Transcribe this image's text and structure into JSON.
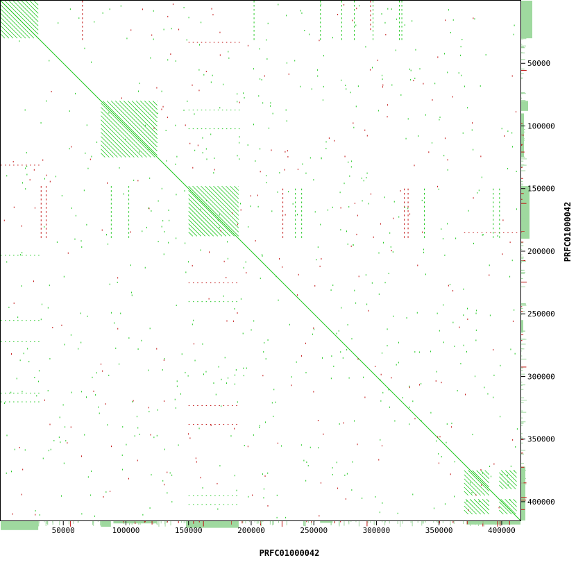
{
  "chart_data": {
    "type": "scatter",
    "title": "",
    "xlabel": "PRFC01000042",
    "ylabel": "PRFC01000042",
    "xlim": [
      0,
      415000
    ],
    "ylim": [
      0,
      415000
    ],
    "y_inverted": true,
    "grid": false,
    "legend": "none",
    "x_ticks": [
      50000,
      100000,
      150000,
      200000,
      250000,
      300000,
      350000,
      400000
    ],
    "x_tick_labels": [
      "50000",
      "100000",
      "150000",
      "200000",
      "250000",
      "300000",
      "350000",
      "400000"
    ],
    "y_ticks": [
      50000,
      100000,
      150000,
      200000,
      250000,
      300000,
      350000,
      400000
    ],
    "y_tick_labels": [
      "50000",
      "100000",
      "150000",
      "200000",
      "250000",
      "300000",
      "350000",
      "400000"
    ],
    "colors": {
      "forward": "#1fc81f",
      "reverse": "#c01010",
      "coverage": "#9fd99f",
      "frame": "#000000"
    },
    "series": [
      {
        "name": "",
        "kind": "forward-diagonal",
        "values": [
          [
            0,
            0
          ],
          [
            415000,
            415000
          ]
        ]
      },
      {
        "name": "",
        "kind": "forward-blocks",
        "blocks": [
          {
            "x": [
              0,
              30000
            ],
            "y": [
              0,
              30000
            ]
          },
          {
            "x": [
              150000,
              190000
            ],
            "y": [
              148000,
              188000
            ]
          },
          {
            "x": [
              80000,
              125000
            ],
            "y": [
              80000,
              125000
            ]
          },
          {
            "x": [
              370000,
              390000
            ],
            "y": [
              375000,
              395000
            ]
          },
          {
            "x": [
              398000,
              412000
            ],
            "y": [
              375000,
              390000
            ]
          },
          {
            "x": [
              370000,
              390000
            ],
            "y": [
              398000,
              410000
            ]
          },
          {
            "x": [
              398000,
              412000
            ],
            "y": [
              398000,
              410000
            ]
          }
        ]
      },
      {
        "name": "",
        "kind": "reverse-segments",
        "values": [
          [
            150000,
            33000,
            190000,
            33000
          ],
          [
            150000,
            225000,
            188000,
            225000
          ],
          [
            150000,
            323000,
            188000,
            323000
          ],
          [
            150000,
            338000,
            188000,
            338000
          ],
          [
            32000,
            148000,
            32000,
            188000
          ],
          [
            36000,
            148000,
            36000,
            188000
          ],
          [
            225000,
            150000,
            225000,
            188000
          ],
          [
            322000,
            150000,
            322000,
            188000
          ],
          [
            325000,
            150000,
            325000,
            188000
          ],
          [
            0,
            131000,
            30000,
            131000
          ],
          [
            370000,
            185000,
            415000,
            185000
          ],
          [
            65000,
            0,
            65000,
            30000
          ],
          [
            295000,
            0,
            295000,
            22000
          ]
        ]
      },
      {
        "name": "",
        "kind": "forward-segments",
        "values": [
          [
            150000,
            87000,
            190000,
            87000
          ],
          [
            150000,
            102000,
            190000,
            102000
          ],
          [
            150000,
            240000,
            188000,
            240000
          ],
          [
            150000,
            395000,
            188000,
            395000
          ],
          [
            150000,
            402000,
            188000,
            402000
          ],
          [
            0,
            203000,
            30000,
            203000
          ],
          [
            0,
            255000,
            30000,
            255000
          ],
          [
            0,
            272000,
            30000,
            272000
          ],
          [
            0,
            313000,
            30000,
            313000
          ],
          [
            0,
            320000,
            30000,
            320000
          ],
          [
            88000,
            148000,
            88000,
            188000
          ],
          [
            102000,
            148000,
            102000,
            188000
          ],
          [
            235000,
            150000,
            235000,
            188000
          ],
          [
            240000,
            150000,
            240000,
            188000
          ],
          [
            338000,
            150000,
            338000,
            188000
          ],
          [
            393000,
            150000,
            393000,
            188000
          ],
          [
            398000,
            150000,
            398000,
            188000
          ],
          [
            202000,
            0,
            202000,
            30000
          ],
          [
            255000,
            0,
            255000,
            30000
          ],
          [
            272000,
            0,
            272000,
            30000
          ],
          [
            282000,
            0,
            282000,
            30000
          ],
          [
            297000,
            0,
            297000,
            30000
          ],
          [
            318000,
            0,
            318000,
            30000
          ],
          [
            320000,
            0,
            320000,
            30000
          ],
          [
            415000,
            0,
            415000,
            30000
          ]
        ]
      }
    ]
  }
}
